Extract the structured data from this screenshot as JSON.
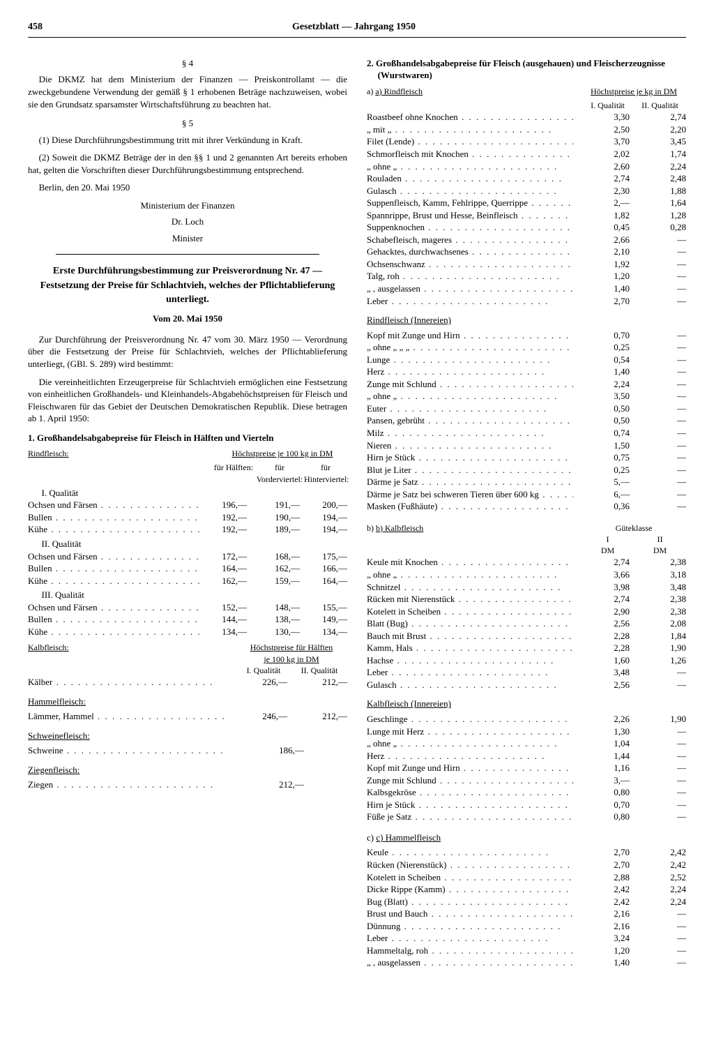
{
  "header": {
    "page_num": "458",
    "title": "Gesetzblatt — Jahrgang 1950"
  },
  "left": {
    "s4_num": "§ 4",
    "s4_body": "Die DKMZ hat dem Ministerium der Finanzen — Preiskontrollamt — die zweckgebundene Verwendung der gemäß § 1 erhobenen Beträge nachzuweisen, wobei sie den Grundsatz sparsamster Wirtschaftsführung zu beachten hat.",
    "s5_num": "§ 5",
    "s5_p1": "(1) Diese Durchführungsbestimmung tritt mit ihrer Verkündung in Kraft.",
    "s5_p2": "(2) Soweit die DKMZ Beträge der in den §§ 1 und 2 genannten Art bereits erhoben hat, gelten die Vorschriften dieser Durchführungsbestimmung entsprechend.",
    "place_date": "Berlin, den 20. Mai 1950",
    "ministry": "Ministerium der Finanzen",
    "signer": "Dr. Loch",
    "role": "Minister",
    "title2": "Erste Durchführungsbestimmung zur Preisverordnung Nr. 47 — Festsetzung der Preise für Schlachtvieh, welches der Pflichtablieferung unterliegt.",
    "title2_date": "Vom 20. Mai 1950",
    "pre1": "Zur Durchführung der Preisverordnung Nr. 47 vom 30. März 1950 — Verordnung über die Festsetzung der Preise für Schlachtvieh, welches der Pflichtablieferung unterliegt, (GBl. S. 289) wird bestimmt:",
    "pre2": "Die vereinheitlichten Erzeugerpreise für Schlachtvieh ermöglichen eine Festsetzung von einheitlichen Großhandels- und Kleinhandels-Abgabehöchstpreisen für Fleisch und Fleischwaren für das Gebiet der Deutschen Demokratischen Republik. Diese betragen ab 1. April 1950:",
    "sec1_title": "1. Großhandelsabgabepreise für Fleisch in Hälften und Vierteln",
    "rind_label": "Rindfleisch:",
    "hdr_hoechst": "Höchstpreise je 100 kg in DM",
    "col_halften": "für Hälften:",
    "col_vorder": "für Vorderviertel:",
    "col_hinter": "für Hinterviertel:",
    "q1": "I. Qualität",
    "q2": "II. Qualität",
    "q3": "III. Qualität",
    "rind_q1": [
      {
        "n": "Ochsen und Färsen",
        "a": "196,—",
        "b": "191,—",
        "c": "200,—"
      },
      {
        "n": "Bullen",
        "a": "192,—",
        "b": "190,—",
        "c": "194,—"
      },
      {
        "n": "Kühe",
        "a": "192,—",
        "b": "189,—",
        "c": "194,—"
      }
    ],
    "rind_q2": [
      {
        "n": "Ochsen und Färsen",
        "a": "172,—",
        "b": "168,—",
        "c": "175,—"
      },
      {
        "n": "Bullen",
        "a": "164,—",
        "b": "162,—",
        "c": "166,—"
      },
      {
        "n": "Kühe",
        "a": "162,—",
        "b": "159,—",
        "c": "164,—"
      }
    ],
    "rind_q3": [
      {
        "n": "Ochsen und Färsen",
        "a": "152,—",
        "b": "148,—",
        "c": "155,—"
      },
      {
        "n": "Bullen",
        "a": "144,—",
        "b": "138,—",
        "c": "149,—"
      },
      {
        "n": "Kühe",
        "a": "134,—",
        "b": "130,—",
        "c": "134,—"
      }
    ],
    "kalb_label": "Kalbfleisch:",
    "kalb_hdr": "Höchstpreise für Hälften",
    "kalb_sub": "je 100 kg in DM",
    "kalb_q1": "I. Qualität",
    "kalb_q2": "II. Qualität",
    "kalb_row": {
      "n": "Kälber",
      "a": "226,—",
      "b": "212,—"
    },
    "hammel_label": "Hammelfleisch:",
    "hammel_row": {
      "n": "Lämmer, Hammel",
      "a": "246,—",
      "b": "212,—"
    },
    "schwein_label": "Schweinefleisch:",
    "schwein_row": {
      "n": "Schweine",
      "a": "186,—"
    },
    "ziege_label": "Ziegenfleisch:",
    "ziege_row": {
      "n": "Ziegen",
      "a": "212,—"
    }
  },
  "right": {
    "sec2_title": "2. Großhandelsabgabepreise für Fleisch (ausgehauen) und Fleischerzeugnisse (Wurstwaren)",
    "a_label": "a) Rindfleisch",
    "hdr": "Höchstpreise je kg in DM",
    "c1": "I. Qualität",
    "c2": "II. Qualität",
    "rind": [
      {
        "n": "Roastbeef ohne Knochen",
        "a": "3,30",
        "b": "2,74"
      },
      {
        "n": "„        mit     „",
        "a": "2,50",
        "b": "2,20"
      },
      {
        "n": "Filet (Lende)",
        "a": "3,70",
        "b": "3,45"
      },
      {
        "n": "Schmorfleisch mit Knochen",
        "a": "2,02",
        "b": "1,74"
      },
      {
        "n": "„        ohne     „",
        "a": "2,60",
        "b": "2,24"
      },
      {
        "n": "Rouladen",
        "a": "2,74",
        "b": "2,48"
      },
      {
        "n": "Gulasch",
        "a": "2,30",
        "b": "1,88"
      },
      {
        "n": "Suppenfleisch, Kamm, Fehlrippe, Querrippe",
        "a": "2,—",
        "b": "1,64"
      },
      {
        "n": "Spannrippe, Brust und Hesse, Beinfleisch",
        "a": "1,82",
        "b": "1,28"
      },
      {
        "n": "Suppenknochen",
        "a": "0,45",
        "b": "0,28"
      },
      {
        "n": "Schabefleisch, mageres",
        "a": "2,66",
        "b": "—"
      },
      {
        "n": "Gehacktes, durchwachsenes",
        "a": "2,10",
        "b": "—"
      },
      {
        "n": "Ochsenschwanz",
        "a": "1,92",
        "b": "—"
      },
      {
        "n": "Talg, roh",
        "a": "1,20",
        "b": "—"
      },
      {
        "n": "„ , ausgelassen",
        "a": "1,40",
        "b": "—"
      },
      {
        "n": "Leber",
        "a": "2,70",
        "b": "—"
      }
    ],
    "rind_inn_label": "Rindfleisch (Innereien)",
    "rind_inn": [
      {
        "n": "Kopf mit Zunge und Hirn",
        "a": "0,70",
        "b": "—"
      },
      {
        "n": "„   ohne   „     „    „",
        "a": "0,25",
        "b": "—"
      },
      {
        "n": "Lunge",
        "a": "0,54",
        "b": "—"
      },
      {
        "n": "Herz",
        "a": "1,40",
        "b": "—"
      },
      {
        "n": "Zunge mit Schlund",
        "a": "2,24",
        "b": "—"
      },
      {
        "n": "„   ohne   „",
        "a": "3,50",
        "b": "—"
      },
      {
        "n": "Euter",
        "a": "0,50",
        "b": "—"
      },
      {
        "n": "Pansen, gebrüht",
        "a": "0,50",
        "b": "—"
      },
      {
        "n": "Milz",
        "a": "0,74",
        "b": "—"
      },
      {
        "n": "Nieren",
        "a": "1,50",
        "b": "—"
      },
      {
        "n": "Hirn je Stück",
        "a": "0,75",
        "b": "—"
      },
      {
        "n": "Blut je Liter",
        "a": "0,25",
        "b": "—"
      },
      {
        "n": "Därme je Satz",
        "a": "5,—",
        "b": "—"
      },
      {
        "n": "Därme je Satz bei schweren Tieren über 600 kg",
        "a": "6,—",
        "b": "—"
      },
      {
        "n": "Masken (Fußhäute)",
        "a": "0,36",
        "b": "—"
      }
    ],
    "b_label": "b) Kalbfleisch",
    "b_hdr": "Güteklasse",
    "b_c1": "I",
    "b_c2": "II",
    "b_dm": "DM",
    "kalb": [
      {
        "n": "Keule mit Knochen",
        "a": "2,74",
        "b": "2,38"
      },
      {
        "n": "„   ohne   „",
        "a": "3,66",
        "b": "3,18"
      },
      {
        "n": "Schnitzel",
        "a": "3,98",
        "b": "3,48"
      },
      {
        "n": "Rücken mit Nierenstück",
        "a": "2,74",
        "b": "2,38"
      },
      {
        "n": "Kotelett in Scheiben",
        "a": "2,90",
        "b": "2,38"
      },
      {
        "n": "Blatt (Bug)",
        "a": "2,56",
        "b": "2,08"
      },
      {
        "n": "Bauch mit Brust",
        "a": "2,28",
        "b": "1,84"
      },
      {
        "n": "Kamm, Hals",
        "a": "2,28",
        "b": "1,90"
      },
      {
        "n": "Hachse",
        "a": "1,60",
        "b": "1,26"
      },
      {
        "n": "Leber",
        "a": "3,48",
        "b": "—"
      },
      {
        "n": "Gulasch",
        "a": "2,56",
        "b": "—"
      }
    ],
    "kalb_inn_label": "Kalbfleisch (Innereien)",
    "kalb_inn": [
      {
        "n": "Geschlinge",
        "a": "2,26",
        "b": "1,90"
      },
      {
        "n": "Lunge mit Herz",
        "a": "1,30",
        "b": "—"
      },
      {
        "n": "„   ohne   „",
        "a": "1,04",
        "b": "—"
      },
      {
        "n": "Herz",
        "a": "1,44",
        "b": "—"
      },
      {
        "n": "Kopf mit Zunge und Hirn",
        "a": "1,16",
        "b": "—"
      },
      {
        "n": "Zunge mit Schlund",
        "a": "3,—",
        "b": "—"
      },
      {
        "n": "Kalbsgekröse",
        "a": "0,80",
        "b": "—"
      },
      {
        "n": "Hirn je Stück",
        "a": "0,70",
        "b": "—"
      },
      {
        "n": "Füße je Satz",
        "a": "0,80",
        "b": "—"
      }
    ],
    "c_label": "c) Hammelfleisch",
    "hammel": [
      {
        "n": "Keule",
        "a": "2,70",
        "b": "2,42"
      },
      {
        "n": "Rücken (Nierenstück)",
        "a": "2,70",
        "b": "2,42"
      },
      {
        "n": "Kotelett in Scheiben",
        "a": "2,88",
        "b": "2,52"
      },
      {
        "n": "Dicke Rippe (Kamm)",
        "a": "2,42",
        "b": "2,24"
      },
      {
        "n": "Bug (Blatt)",
        "a": "2,42",
        "b": "2,24"
      },
      {
        "n": "Brust und Bauch",
        "a": "2,16",
        "b": "—"
      },
      {
        "n": "Dünnung",
        "a": "2,16",
        "b": "—"
      },
      {
        "n": "Leber",
        "a": "3,24",
        "b": "—"
      },
      {
        "n": "Hammeltalg, roh",
        "a": "1,20",
        "b": "—"
      },
      {
        "n": "„        , ausgelassen",
        "a": "1,40",
        "b": "—"
      }
    ]
  }
}
